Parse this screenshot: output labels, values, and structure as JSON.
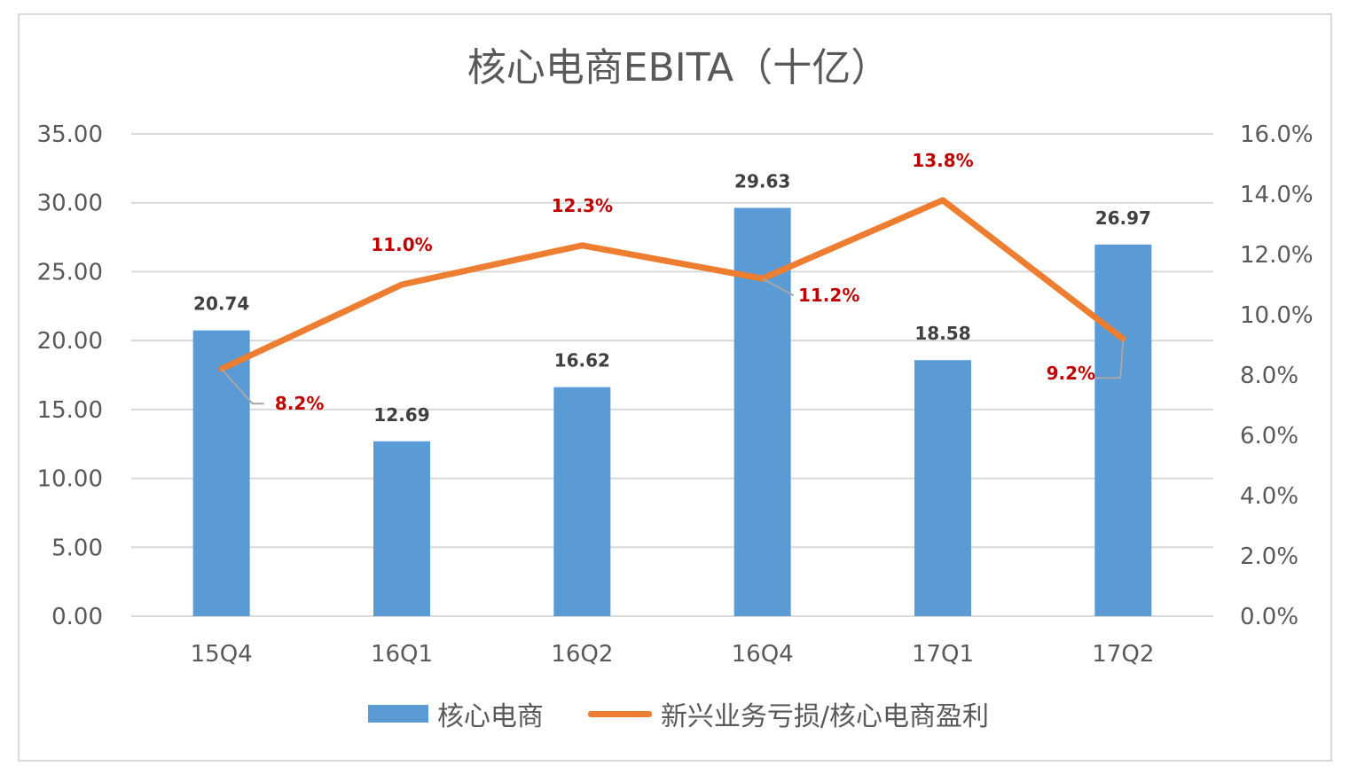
{
  "chart_data": {
    "type": "bar",
    "title": "核心电商EBITA（十亿）",
    "categories": [
      "15Q4",
      "16Q1",
      "16Q2",
      "16Q4",
      "17Q1",
      "17Q2"
    ],
    "series": [
      {
        "name": "核心电商",
        "type": "bar",
        "axis": "left",
        "color": "#5b9bd5",
        "values": [
          20.74,
          12.69,
          16.62,
          29.63,
          18.58,
          26.97
        ],
        "labels": [
          "20.74",
          "12.69",
          "16.62",
          "29.63",
          "18.58",
          "26.97"
        ]
      },
      {
        "name": "新兴业务亏损/核心电商盈利",
        "type": "line",
        "axis": "right",
        "color": "#ed7d31",
        "values": [
          8.2,
          11.0,
          12.3,
          11.2,
          13.8,
          9.2
        ],
        "labels": [
          "8.2%",
          "11.0%",
          "12.3%",
          "11.2%",
          "13.8%",
          "9.2%"
        ]
      }
    ],
    "y_left": {
      "range": [
        0,
        35
      ],
      "ticks": [
        "0.00",
        "5.00",
        "10.00",
        "15.00",
        "20.00",
        "25.00",
        "30.00",
        "35.00"
      ]
    },
    "y_right": {
      "range": [
        0,
        16
      ],
      "ticks": [
        "0.0%",
        "2.0%",
        "4.0%",
        "6.0%",
        "8.0%",
        "10.0%",
        "12.0%",
        "14.0%",
        "16.0%"
      ]
    },
    "grid": true,
    "legend_position": "bottom"
  }
}
